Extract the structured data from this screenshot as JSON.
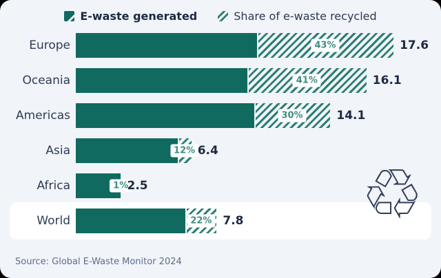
{
  "legend": {
    "generated_label": "E-waste generated",
    "recycled_label": "Share of e-waste recycled"
  },
  "source": "Source: Global E-Waste Monitor 2024",
  "icons": {
    "legend_generated": "solid-swatch-with-slash-icon",
    "legend_recycled": "diagonal-hatch-icon",
    "recycle": "recycling-symbol-icon",
    "recycle_glyph": "♲"
  },
  "colors": {
    "card_bg": "#f1f4f9",
    "bar_solid": "#116a5f",
    "bar_hatch": "#2c7f73",
    "pct_text": "#3f8d80",
    "value_text": "#1c2a42",
    "label_text": "#2e3c55",
    "source_text": "#5c6e8c",
    "highlight_band": "#ffffff",
    "recycle_icon": "#2e3d58"
  },
  "chart_data": {
    "type": "bar",
    "orientation": "horizontal",
    "categories": [
      "Europe",
      "Oceania",
      "Americas",
      "Asia",
      "Africa",
      "World"
    ],
    "series": [
      {
        "name": "E-waste generated",
        "values": [
          17.6,
          16.1,
          14.1,
          6.4,
          2.5,
          7.8
        ]
      },
      {
        "name": "Share of e-waste recycled",
        "values_pct": [
          43,
          41,
          30,
          12,
          1,
          22
        ],
        "labels": [
          "43%",
          "41%",
          "30%",
          "12%",
          "1%",
          "22%"
        ]
      }
    ],
    "value_labels": [
      "17.6",
      "16.1",
      "14.1",
      "6.4",
      "2.5",
      "7.8"
    ],
    "highlighted_category": "World",
    "xlim": [
      0,
      17.6
    ],
    "grid": false,
    "legend_position": "top"
  }
}
